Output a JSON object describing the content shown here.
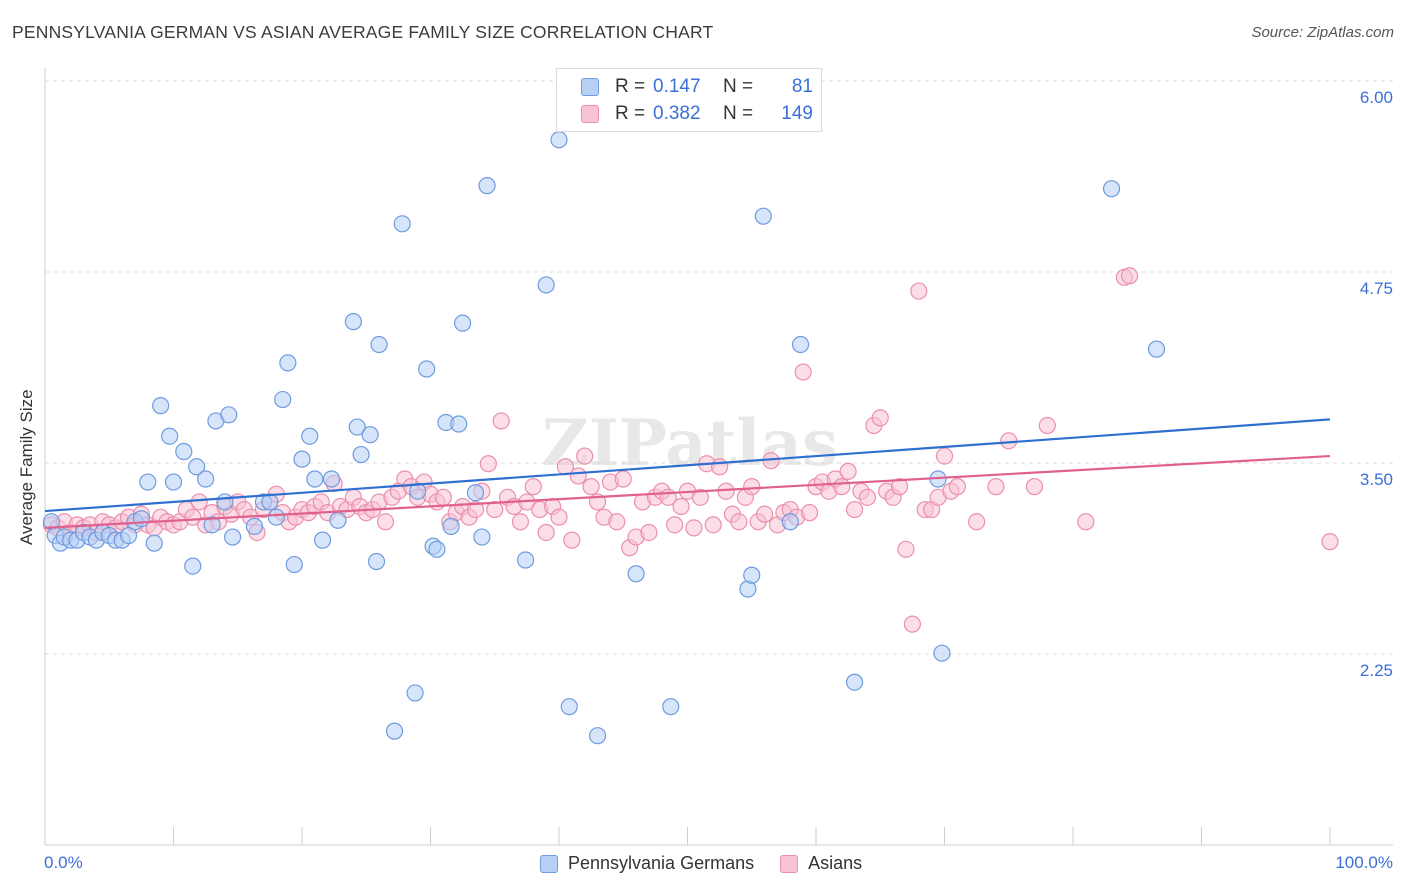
{
  "title": "PENNSYLVANIA GERMAN VS ASIAN AVERAGE FAMILY SIZE CORRELATION CHART",
  "source": "Source: ZipAtlas.com",
  "watermark": "ZIPatlas",
  "legend": {
    "rows": [
      {
        "r_key": "R =",
        "r_value": "0.147",
        "n_key": "N =",
        "n_value": "81"
      },
      {
        "r_key": "R =",
        "r_value": "0.382",
        "n_key": "N =",
        "n_value": "149"
      }
    ]
  },
  "colors": {
    "blue_fill": "#b7cff5",
    "blue_stroke": "#6f9be0",
    "blue_line": "#2e6fd0",
    "pink_fill": "#f8c3d3",
    "pink_stroke": "#ec8fac",
    "pink_line": "#e0608f",
    "axis_label": "#3a6fd8",
    "grid": "#dddddd"
  },
  "chart_data": {
    "type": "scatter",
    "title": "PENNSYLVANIA GERMAN VS ASIAN AVERAGE FAMILY SIZE CORRELATION CHART",
    "xlabel": "",
    "ylabel": "Average Family Size",
    "x_tick_labels": [
      "0.0%",
      "100.0%"
    ],
    "y_tick_labels": [
      "6.00",
      "4.75",
      "3.50",
      "2.25"
    ],
    "y_ticks": [
      6.0,
      4.75,
      3.5,
      2.25
    ],
    "xlim": [
      0,
      100
    ],
    "ylim": [
      1.2,
      6.1
    ],
    "grid": true,
    "legend_position": "top-center",
    "series": [
      {
        "name": "Pennsylvania Germans",
        "color": "#6f9be0",
        "trend": {
          "x": [
            0,
            100
          ],
          "y": [
            3.29,
            3.89
          ]
        },
        "points": [
          [
            0.5,
            3.22
          ],
          [
            0.8,
            3.13
          ],
          [
            1.2,
            3.08
          ],
          [
            1.5,
            3.12
          ],
          [
            2.0,
            3.1
          ],
          [
            2.5,
            3.1
          ],
          [
            3.0,
            3.15
          ],
          [
            3.5,
            3.12
          ],
          [
            4.0,
            3.1
          ],
          [
            4.5,
            3.15
          ],
          [
            5.0,
            3.13
          ],
          [
            5.5,
            3.1
          ],
          [
            6.0,
            3.1
          ],
          [
            6.5,
            3.13
          ],
          [
            7.0,
            3.22
          ],
          [
            7.5,
            3.24
          ],
          [
            8.0,
            3.48
          ],
          [
            8.5,
            3.08
          ],
          [
            9.0,
            3.98
          ],
          [
            9.7,
            3.78
          ],
          [
            10.0,
            3.48
          ],
          [
            10.8,
            3.68
          ],
          [
            11.5,
            2.93
          ],
          [
            11.8,
            3.58
          ],
          [
            12.5,
            3.5
          ],
          [
            13.0,
            3.2
          ],
          [
            13.3,
            3.88
          ],
          [
            14.0,
            3.35
          ],
          [
            14.3,
            3.92
          ],
          [
            14.6,
            3.12
          ],
          [
            16.3,
            3.19
          ],
          [
            17.0,
            3.35
          ],
          [
            17.5,
            3.35
          ],
          [
            18.0,
            3.25
          ],
          [
            18.5,
            4.02
          ],
          [
            18.9,
            4.26
          ],
          [
            19.4,
            2.94
          ],
          [
            20.0,
            3.63
          ],
          [
            20.6,
            3.78
          ],
          [
            21.0,
            3.5
          ],
          [
            21.6,
            3.1
          ],
          [
            22.3,
            3.5
          ],
          [
            22.8,
            3.23
          ],
          [
            24.0,
            4.53
          ],
          [
            24.3,
            3.84
          ],
          [
            24.6,
            3.66
          ],
          [
            25.3,
            3.79
          ],
          [
            25.8,
            2.96
          ],
          [
            26.0,
            4.38
          ],
          [
            27.2,
            1.85
          ],
          [
            27.8,
            5.17
          ],
          [
            28.8,
            2.1
          ],
          [
            29.0,
            3.42
          ],
          [
            29.7,
            4.22
          ],
          [
            30.2,
            3.06
          ],
          [
            30.5,
            3.04
          ],
          [
            31.2,
            3.87
          ],
          [
            31.6,
            3.19
          ],
          [
            32.2,
            3.86
          ],
          [
            32.5,
            4.52
          ],
          [
            33.5,
            3.41
          ],
          [
            34.0,
            3.12
          ],
          [
            34.4,
            5.42
          ],
          [
            37.4,
            2.97
          ],
          [
            39.0,
            4.77
          ],
          [
            40.0,
            5.72
          ],
          [
            40.8,
            2.01
          ],
          [
            43.0,
            1.82
          ],
          [
            46.0,
            2.88
          ],
          [
            48.7,
            2.01
          ],
          [
            54.7,
            2.78
          ],
          [
            55.0,
            2.87
          ],
          [
            55.9,
            5.22
          ],
          [
            58.0,
            3.22
          ],
          [
            58.8,
            4.38
          ],
          [
            63.0,
            2.17
          ],
          [
            69.5,
            3.5
          ],
          [
            69.8,
            2.36
          ],
          [
            83.0,
            5.4
          ],
          [
            86.5,
            4.35
          ]
        ]
      },
      {
        "name": "Asians",
        "color": "#ec8fac",
        "trend": {
          "x": [
            0,
            100
          ],
          "y": [
            3.18,
            3.65
          ]
        },
        "points": [
          [
            0.5,
            3.2
          ],
          [
            1.0,
            3.18
          ],
          [
            1.5,
            3.22
          ],
          [
            2.0,
            3.15
          ],
          [
            2.5,
            3.2
          ],
          [
            3.0,
            3.18
          ],
          [
            3.5,
            3.2
          ],
          [
            4.0,
            3.15
          ],
          [
            4.5,
            3.22
          ],
          [
            5.0,
            3.2
          ],
          [
            5.5,
            3.18
          ],
          [
            6.0,
            3.22
          ],
          [
            6.5,
            3.25
          ],
          [
            7.0,
            3.2
          ],
          [
            7.5,
            3.27
          ],
          [
            8.0,
            3.2
          ],
          [
            8.5,
            3.18
          ],
          [
            9.0,
            3.25
          ],
          [
            9.5,
            3.22
          ],
          [
            10.0,
            3.2
          ],
          [
            10.5,
            3.22
          ],
          [
            11.0,
            3.3
          ],
          [
            11.5,
            3.25
          ],
          [
            12.0,
            3.35
          ],
          [
            12.5,
            3.2
          ],
          [
            13.0,
            3.28
          ],
          [
            13.5,
            3.22
          ],
          [
            14.0,
            3.32
          ],
          [
            14.5,
            3.27
          ],
          [
            15.0,
            3.35
          ],
          [
            15.5,
            3.3
          ],
          [
            16.0,
            3.25
          ],
          [
            16.5,
            3.15
          ],
          [
            17.0,
            3.3
          ],
          [
            17.5,
            3.35
          ],
          [
            18.0,
            3.4
          ],
          [
            18.5,
            3.28
          ],
          [
            19.0,
            3.22
          ],
          [
            19.5,
            3.25
          ],
          [
            20.0,
            3.3
          ],
          [
            20.5,
            3.28
          ],
          [
            21.0,
            3.32
          ],
          [
            21.5,
            3.35
          ],
          [
            22.0,
            3.28
          ],
          [
            22.5,
            3.47
          ],
          [
            23.0,
            3.32
          ],
          [
            23.5,
            3.3
          ],
          [
            24.0,
            3.38
          ],
          [
            24.5,
            3.32
          ],
          [
            25.0,
            3.28
          ],
          [
            25.5,
            3.3
          ],
          [
            26.0,
            3.35
          ],
          [
            26.5,
            3.22
          ],
          [
            27.0,
            3.38
          ],
          [
            27.5,
            3.42
          ],
          [
            28.0,
            3.5
          ],
          [
            28.5,
            3.45
          ],
          [
            29.0,
            3.38
          ],
          [
            29.5,
            3.48
          ],
          [
            30.0,
            3.4
          ],
          [
            30.5,
            3.35
          ],
          [
            31.0,
            3.38
          ],
          [
            31.5,
            3.22
          ],
          [
            32.0,
            3.28
          ],
          [
            32.5,
            3.32
          ],
          [
            33.0,
            3.25
          ],
          [
            33.5,
            3.3
          ],
          [
            34.0,
            3.42
          ],
          [
            34.5,
            3.6
          ],
          [
            35.0,
            3.3
          ],
          [
            35.5,
            3.88
          ],
          [
            36.0,
            3.38
          ],
          [
            36.5,
            3.32
          ],
          [
            37.0,
            3.22
          ],
          [
            37.5,
            3.35
          ],
          [
            38.0,
            3.45
          ],
          [
            38.5,
            3.3
          ],
          [
            39.0,
            3.15
          ],
          [
            39.5,
            3.32
          ],
          [
            40.0,
            3.25
          ],
          [
            40.5,
            3.58
          ],
          [
            41.0,
            3.1
          ],
          [
            41.5,
            3.52
          ],
          [
            42.0,
            3.65
          ],
          [
            42.5,
            3.45
          ],
          [
            43.0,
            3.35
          ],
          [
            43.5,
            3.25
          ],
          [
            44.0,
            3.48
          ],
          [
            44.5,
            3.22
          ],
          [
            45.0,
            3.5
          ],
          [
            45.5,
            3.05
          ],
          [
            46.0,
            3.12
          ],
          [
            46.5,
            3.35
          ],
          [
            47.0,
            3.15
          ],
          [
            47.5,
            3.38
          ],
          [
            48.0,
            3.42
          ],
          [
            48.5,
            3.38
          ],
          [
            49.0,
            3.2
          ],
          [
            49.5,
            3.32
          ],
          [
            50.0,
            3.42
          ],
          [
            50.5,
            3.18
          ],
          [
            51.0,
            3.38
          ],
          [
            51.5,
            3.6
          ],
          [
            52.0,
            3.2
          ],
          [
            52.5,
            3.58
          ],
          [
            53.0,
            3.42
          ],
          [
            53.5,
            3.27
          ],
          [
            54.0,
            3.22
          ],
          [
            54.5,
            3.38
          ],
          [
            55.0,
            3.45
          ],
          [
            55.5,
            3.22
          ],
          [
            56.0,
            3.27
          ],
          [
            56.5,
            3.62
          ],
          [
            57.0,
            3.2
          ],
          [
            57.5,
            3.28
          ],
          [
            58.0,
            3.3
          ],
          [
            58.5,
            3.25
          ],
          [
            59.0,
            4.2
          ],
          [
            59.5,
            3.28
          ],
          [
            60.0,
            3.45
          ],
          [
            60.5,
            3.48
          ],
          [
            61.0,
            3.42
          ],
          [
            61.5,
            3.5
          ],
          [
            62.0,
            3.45
          ],
          [
            62.5,
            3.55
          ],
          [
            63.0,
            3.3
          ],
          [
            63.5,
            3.42
          ],
          [
            64.0,
            3.38
          ],
          [
            64.5,
            3.85
          ],
          [
            65.0,
            3.9
          ],
          [
            65.5,
            3.42
          ],
          [
            66.0,
            3.38
          ],
          [
            66.5,
            3.45
          ],
          [
            67.0,
            3.04
          ],
          [
            67.5,
            2.55
          ],
          [
            68.0,
            4.73
          ],
          [
            68.5,
            3.3
          ],
          [
            69.0,
            3.3
          ],
          [
            69.5,
            3.38
          ],
          [
            70.0,
            3.65
          ],
          [
            70.5,
            3.42
          ],
          [
            71.0,
            3.45
          ],
          [
            72.5,
            3.22
          ],
          [
            74.0,
            3.45
          ],
          [
            75.0,
            3.75
          ],
          [
            77.0,
            3.45
          ],
          [
            78.0,
            3.85
          ],
          [
            81.0,
            3.22
          ],
          [
            84.0,
            4.82
          ],
          [
            84.4,
            4.83
          ],
          [
            100.0,
            3.09
          ]
        ]
      }
    ]
  }
}
